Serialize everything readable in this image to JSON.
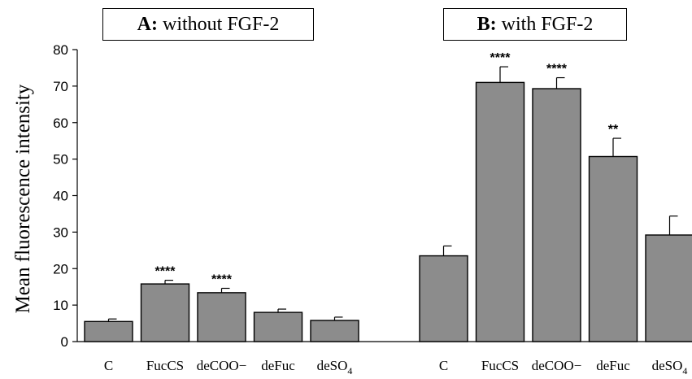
{
  "panels": [
    {
      "letter": "A:",
      "title": "without FGF-2"
    },
    {
      "letter": "B:",
      "title": "with FGF-2"
    }
  ],
  "chart_data": {
    "type": "bar",
    "ylabel": "Mean fluorescence intensity",
    "ylim": [
      0,
      80
    ],
    "yticks": [
      0,
      10,
      20,
      30,
      40,
      50,
      60,
      70,
      80
    ],
    "grid": false,
    "bar_color": "#8c8c8c",
    "groups": [
      {
        "name": "A: without FGF-2",
        "categories": [
          "C",
          "FucCS",
          "deCOO−",
          "deFuc",
          "deSO4"
        ],
        "values": [
          5.5,
          15.8,
          13.4,
          8.0,
          5.8
        ],
        "errors": [
          0.7,
          1.0,
          1.2,
          0.9,
          0.9
        ],
        "significance": [
          "",
          "****",
          "****",
          "",
          ""
        ]
      },
      {
        "name": "B: with FGF-2",
        "categories": [
          "C",
          "FucCS",
          "deCOO−",
          "deFuc",
          "deSO4"
        ],
        "values": [
          23.5,
          71.0,
          69.3,
          50.7,
          29.2
        ],
        "errors": [
          2.7,
          4.3,
          3.0,
          5.0,
          5.2
        ],
        "significance": [
          "",
          "****",
          "****",
          "**",
          ""
        ]
      }
    ]
  }
}
